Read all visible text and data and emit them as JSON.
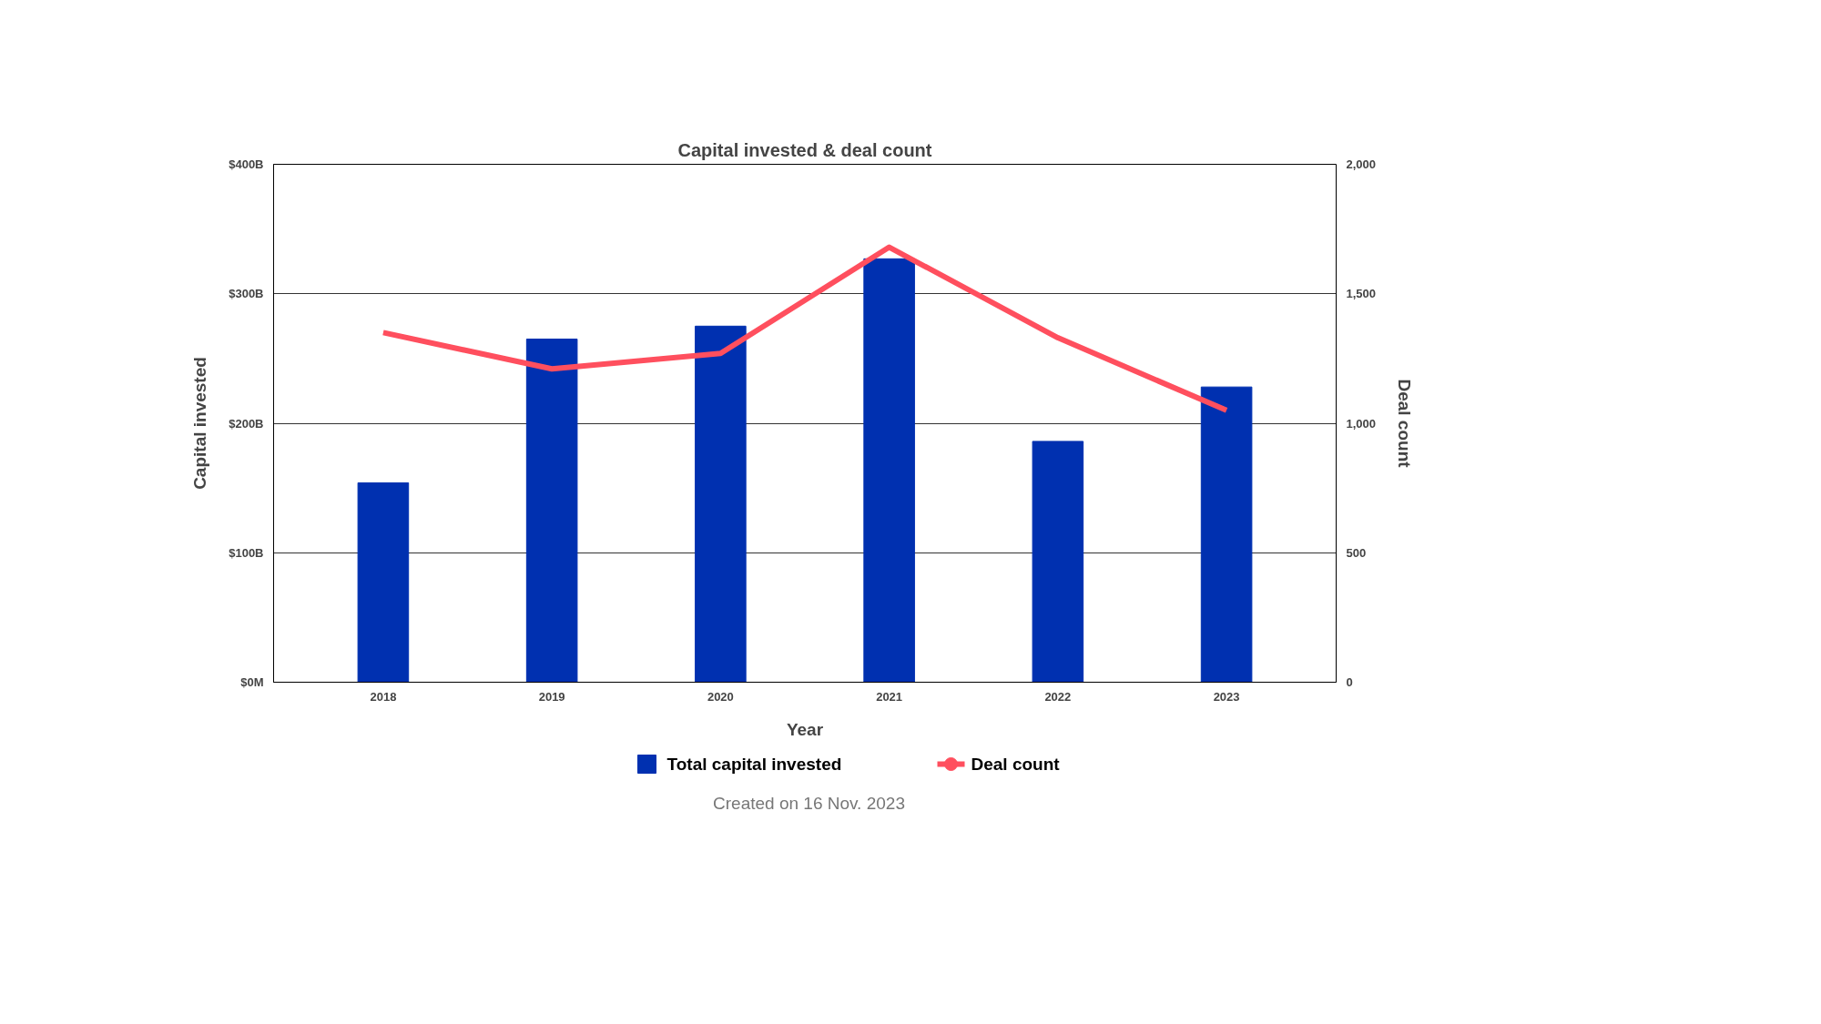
{
  "chart_data": {
    "type": "bar",
    "title": "Capital invested & deal count",
    "xlabel": "Year",
    "ylabel": "Capital invested",
    "y2label": "Deal count",
    "categories": [
      "2018",
      "2019",
      "2020",
      "2021",
      "2022",
      "2023"
    ],
    "series": [
      {
        "name": "Total capital invested",
        "color": "#0030b0",
        "values": [
          154,
          265,
          275,
          327,
          186,
          228
        ]
      },
      {
        "name": "Deal count",
        "type": "line",
        "axis": "y2",
        "color": "#ff4f5e",
        "values": [
          1350,
          1210,
          1270,
          1680,
          1330,
          1050
        ]
      }
    ],
    "ylim": [
      0,
      400
    ],
    "yticks": [
      {
        "value": 0,
        "label": "$0M"
      },
      {
        "value": 100,
        "label": "$100B"
      },
      {
        "value": 200,
        "label": "$200B"
      },
      {
        "value": 300,
        "label": "$300B"
      },
      {
        "value": 400,
        "label": "$400B"
      }
    ],
    "y2lim": [
      0,
      2000
    ],
    "y2ticks": [
      0,
      500,
      {
        "value": 1000,
        "label": "1,000"
      },
      {
        "value": 1500,
        "label": "1,500"
      },
      {
        "value": 2000,
        "label": "2,000"
      }
    ],
    "grid": "y",
    "legend": "bottom",
    "line_style": "solid",
    "annotations": [
      "Created on 16 Nov. 2023"
    ]
  }
}
